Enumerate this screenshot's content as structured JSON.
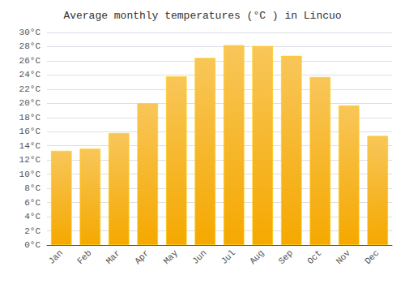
{
  "chart_data": {
    "type": "bar",
    "title": "Average monthly temperatures (°C ) in Lincuo",
    "categories": [
      "Jan",
      "Feb",
      "Mar",
      "Apr",
      "May",
      "Jun",
      "Jul",
      "Aug",
      "Sep",
      "Oct",
      "Nov",
      "Dec"
    ],
    "values": [
      13.3,
      13.6,
      15.8,
      20.0,
      23.8,
      26.4,
      28.2,
      28.1,
      26.7,
      23.7,
      19.7,
      15.4
    ],
    "color": "#F5A800",
    "ylim": [
      0,
      30
    ],
    "yticks": [
      {
        "value": 0,
        "label": "0°C"
      },
      {
        "value": 2,
        "label": "2°C"
      },
      {
        "value": 4,
        "label": "4°C"
      },
      {
        "value": 6,
        "label": "6°C"
      },
      {
        "value": 8,
        "label": "8°C"
      },
      {
        "value": 10,
        "label": "10°C"
      },
      {
        "value": 12,
        "label": "12°C"
      },
      {
        "value": 14,
        "label": "14°C"
      },
      {
        "value": 16,
        "label": "16°C"
      },
      {
        "value": 18,
        "label": "18°C"
      },
      {
        "value": 20,
        "label": "20°C"
      },
      {
        "value": 22,
        "label": "22°C"
      },
      {
        "value": 24,
        "label": "24°C"
      },
      {
        "value": 26,
        "label": "26°C"
      },
      {
        "value": 28,
        "label": "28°C"
      },
      {
        "value": 30,
        "label": "30°C"
      }
    ],
    "grid": true
  }
}
